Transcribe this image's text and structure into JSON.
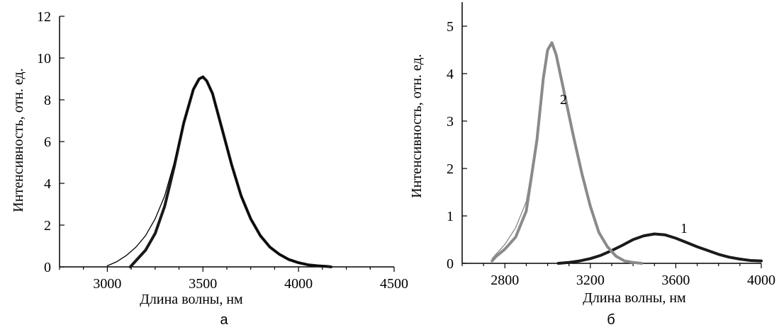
{
  "chart_data": [
    {
      "type": "line",
      "panel_label": "а",
      "xlabel": "Длина волны, нм",
      "ylabel": "Интенсивность, отн. ед.",
      "xlim": [
        2750,
        4500
      ],
      "ylim": [
        0,
        12
      ],
      "xticks": [
        3000,
        3500,
        4000,
        4500
      ],
      "yticks": [
        0,
        2,
        4,
        6,
        8,
        10,
        12
      ],
      "legend": "none",
      "grid": false,
      "series": [
        {
          "style": "thick",
          "color": "#1a1a1a",
          "x": [
            3120,
            3150,
            3200,
            3250,
            3300,
            3350,
            3400,
            3450,
            3480,
            3500,
            3520,
            3550,
            3600,
            3650,
            3700,
            3750,
            3800,
            3850,
            3900,
            3950,
            4000,
            4050,
            4100,
            4150,
            4170
          ],
          "y": [
            0.0,
            0.3,
            0.8,
            1.6,
            2.9,
            4.8,
            6.9,
            8.5,
            9.0,
            9.1,
            8.9,
            8.3,
            6.6,
            4.9,
            3.4,
            2.3,
            1.5,
            0.95,
            0.6,
            0.35,
            0.2,
            0.1,
            0.05,
            0.02,
            0.0
          ]
        },
        {
          "style": "thin",
          "color": "#000000",
          "x": [
            3000,
            3050,
            3100,
            3150,
            3200,
            3250,
            3300,
            3350,
            3400,
            3450,
            3480,
            3500,
            3520,
            3550,
            3600,
            3650,
            3700,
            3750,
            3800,
            3850,
            3900,
            3950,
            4000,
            4050,
            4100,
            4150
          ],
          "y": [
            0.05,
            0.25,
            0.55,
            0.95,
            1.5,
            2.3,
            3.4,
            5.0,
            6.9,
            8.5,
            9.0,
            9.1,
            8.9,
            8.3,
            6.6,
            4.9,
            3.4,
            2.3,
            1.5,
            0.95,
            0.6,
            0.35,
            0.2,
            0.1,
            0.05,
            0.02
          ]
        }
      ]
    },
    {
      "type": "line",
      "panel_label": "б",
      "xlabel": "Длина волны, нм",
      "ylabel": "Интенсивность, отн. ед.",
      "xlim": [
        2600,
        4000
      ],
      "ylim": [
        0,
        5
      ],
      "xticks": [
        2800,
        3200,
        3600,
        4000
      ],
      "yticks": [
        0,
        1,
        2,
        3,
        4,
        5
      ],
      "legend": "none",
      "grid": false,
      "series": [
        {
          "name": "1",
          "style": "thick",
          "color": "#1a1a1a",
          "x": [
            3050,
            3100,
            3150,
            3200,
            3250,
            3300,
            3350,
            3400,
            3450,
            3500,
            3550,
            3600,
            3650,
            3700,
            3750,
            3800,
            3850,
            3900,
            3950,
            4000
          ],
          "y": [
            0.0,
            0.02,
            0.05,
            0.1,
            0.17,
            0.27,
            0.38,
            0.5,
            0.58,
            0.62,
            0.6,
            0.53,
            0.44,
            0.35,
            0.27,
            0.19,
            0.13,
            0.09,
            0.06,
            0.05
          ]
        },
        {
          "name": "2",
          "style": "thick",
          "color": "#8a8a8a",
          "x": [
            2740,
            2760,
            2800,
            2850,
            2900,
            2950,
            2980,
            3000,
            3020,
            3040,
            3080,
            3120,
            3160,
            3200,
            3240,
            3280,
            3320,
            3360,
            3400,
            3440
          ],
          "y": [
            0.05,
            0.15,
            0.3,
            0.55,
            1.1,
            2.6,
            3.9,
            4.5,
            4.65,
            4.4,
            3.55,
            2.7,
            1.9,
            1.2,
            0.65,
            0.35,
            0.15,
            0.05,
            0.02,
            0.0
          ]
        },
        {
          "style": "thin",
          "color": "#8a8a8a",
          "x": [
            2740,
            2760,
            2800,
            2850,
            2900,
            2950
          ],
          "y": [
            0.1,
            0.2,
            0.4,
            0.75,
            1.3,
            2.6
          ]
        }
      ]
    }
  ]
}
